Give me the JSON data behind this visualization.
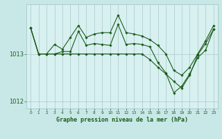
{
  "title": "Graphe pression niveau de la mer (hPa)",
  "bg_color": "#c8e8e8",
  "plot_bg_color": "#d8f0f0",
  "line_color": "#1a5c1a",
  "grid_color": "#a8c8c8",
  "tick_color": "#1a5c1a",
  "hours": [
    0,
    1,
    2,
    3,
    4,
    5,
    6,
    7,
    8,
    9,
    10,
    11,
    12,
    13,
    14,
    15,
    16,
    17,
    18,
    19,
    20,
    21,
    22,
    23
  ],
  "series1": [
    1013.55,
    1013.0,
    1013.0,
    1013.2,
    1013.1,
    1013.35,
    1013.6,
    1013.35,
    1013.42,
    1013.45,
    1013.45,
    1013.82,
    1013.45,
    1013.42,
    1013.38,
    1013.3,
    1013.18,
    1013.0,
    1012.65,
    1012.55,
    1012.72,
    1013.0,
    1013.28,
    1013.6
  ],
  "series2": [
    1013.55,
    1013.0,
    1013.0,
    1013.0,
    1013.05,
    1013.05,
    1013.48,
    1013.18,
    1013.22,
    1013.2,
    1013.18,
    1013.62,
    1013.2,
    1013.22,
    1013.2,
    1013.15,
    1012.82,
    1012.6,
    1012.18,
    1012.32,
    1012.58,
    1012.92,
    1013.08,
    1013.52
  ],
  "series3": [
    1013.55,
    1013.0,
    1013.0,
    1013.0,
    1013.0,
    1013.0,
    1013.0,
    1013.0,
    1013.0,
    1013.0,
    1013.0,
    1013.0,
    1013.0,
    1013.0,
    1013.0,
    1012.88,
    1012.72,
    1012.58,
    1012.42,
    1012.28,
    1012.55,
    1012.98,
    1013.22,
    1013.52
  ],
  "ylim": [
    1011.85,
    1014.05
  ],
  "yticks": [
    1012,
    1013
  ],
  "xlim": [
    -0.5,
    23.5
  ],
  "figwidth": 3.2,
  "figheight": 2.0,
  "dpi": 100
}
